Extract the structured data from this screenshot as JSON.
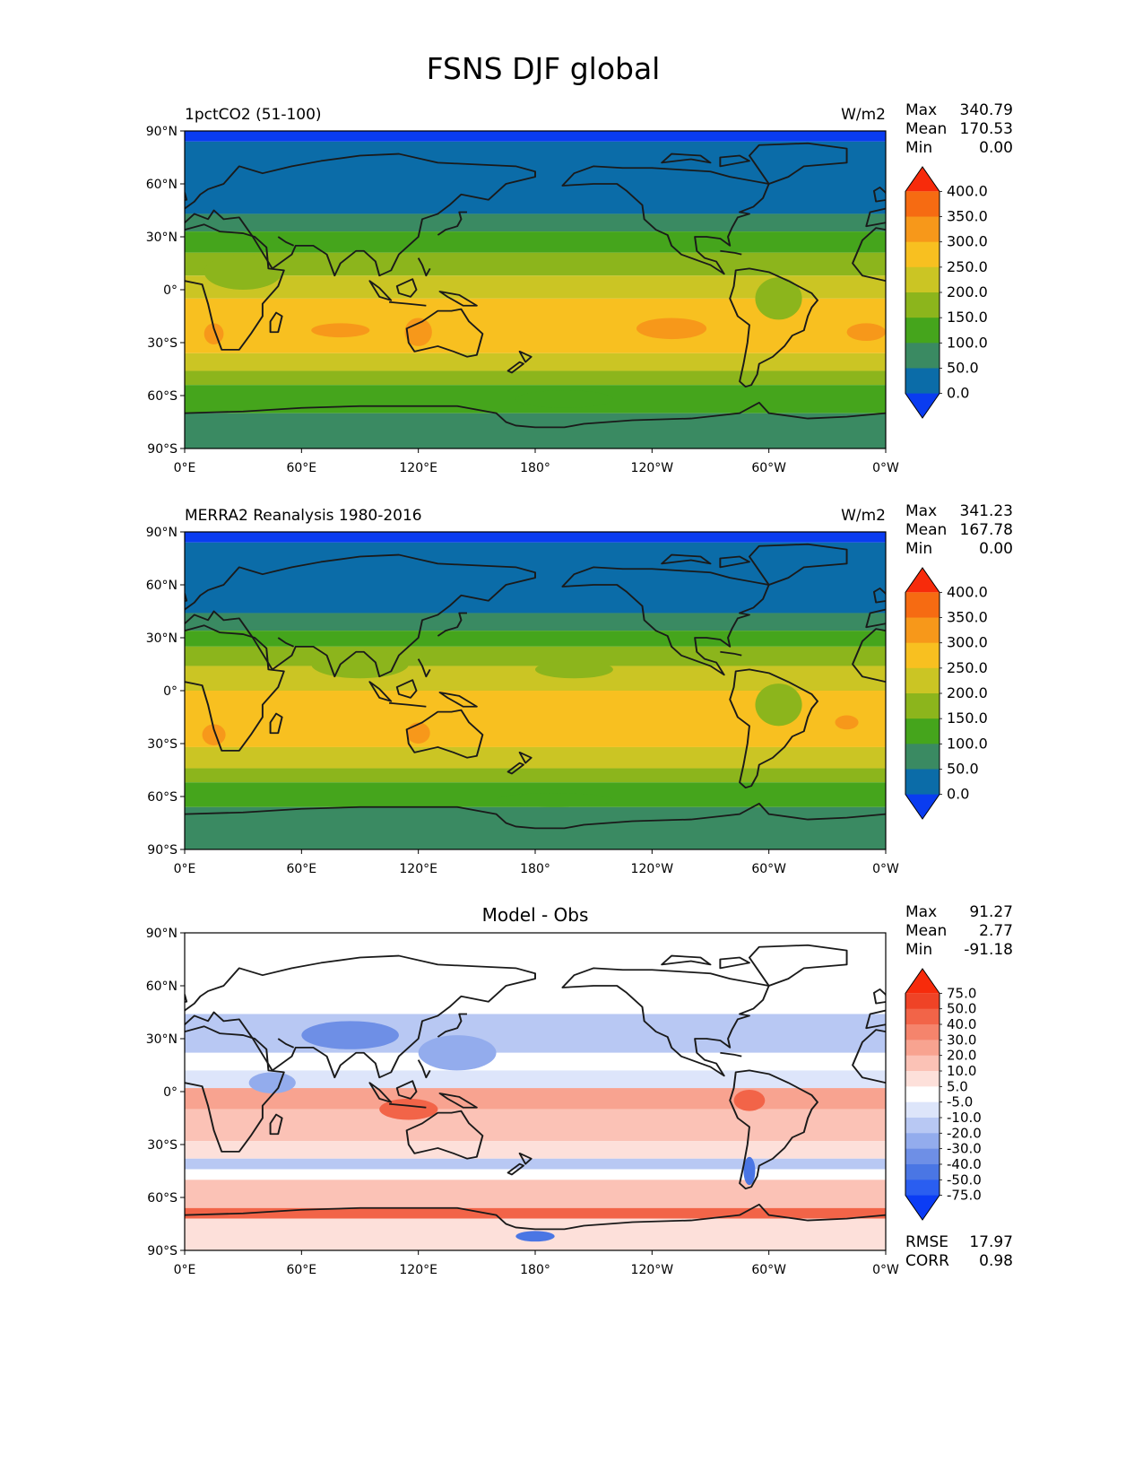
{
  "figure_title": "FSNS DJF global",
  "chart_data": [
    {
      "type": "heatmap",
      "panel": "model",
      "left_title": "1pctCO2 (51-100)",
      "units": "W/m2",
      "stats": {
        "max_label": "Max",
        "max": "340.79",
        "mean_label": "Mean",
        "mean": "170.53",
        "min_label": "Min",
        "min": "0.00"
      },
      "x_ticks": [
        "0°E",
        "60°E",
        "120°E",
        "180°",
        "120°W",
        "60°W",
        "0°W"
      ],
      "y_ticks": [
        "90°N",
        "60°N",
        "30°N",
        "0°",
        "30°S",
        "60°S",
        "90°S"
      ],
      "xlim": [
        0,
        360
      ],
      "ylim": [
        -90,
        90
      ],
      "colorbar": {
        "levels": [
          "0.0",
          "50.0",
          "100.0",
          "150.0",
          "200.0",
          "250.0",
          "300.0",
          "350.0",
          "400.0"
        ],
        "colors": [
          "#0a3cf0",
          "#0b6ca8",
          "#3a8a62",
          "#45a51c",
          "#8cb51c",
          "#cbc524",
          "#f8c020",
          "#f7981a",
          "#f66b12",
          "#f72b0b"
        ],
        "extend": "both"
      },
      "lat_bands": [
        {
          "from": 90,
          "to": 84,
          "level": 0
        },
        {
          "from": 84,
          "to": 43,
          "level": 1
        },
        {
          "from": 43,
          "to": 33,
          "level": 2
        },
        {
          "from": 33,
          "to": 21,
          "level": 3
        },
        {
          "from": 21,
          "to": 8,
          "level": 4
        },
        {
          "from": 8,
          "to": -5,
          "level": 5
        },
        {
          "from": -5,
          "to": -36,
          "level": 6
        },
        {
          "from": -36,
          "to": -46,
          "level": 5
        },
        {
          "from": -46,
          "to": -54,
          "level": 4
        },
        {
          "from": -54,
          "to": -70,
          "level": 3
        },
        {
          "from": -70,
          "to": -90,
          "level": 2
        }
      ],
      "patches": [
        {
          "lon": 80,
          "lat": -23,
          "w": 15,
          "h": 4,
          "level": 7
        },
        {
          "lon": 120,
          "lat": -24,
          "w": 7,
          "h": 8,
          "level": 7
        },
        {
          "lon": 250,
          "lat": -22,
          "w": 18,
          "h": 6,
          "level": 7
        },
        {
          "lon": 350,
          "lat": -24,
          "w": 10,
          "h": 5,
          "level": 7
        },
        {
          "lon": 15,
          "lat": -25,
          "w": 5,
          "h": 6,
          "level": 7
        },
        {
          "lon": 30,
          "lat": 10,
          "w": 20,
          "h": 10,
          "level": 4
        },
        {
          "lon": 305,
          "lat": -5,
          "w": 12,
          "h": 12,
          "level": 4
        },
        {
          "lon": 195,
          "lat": -62,
          "w": 25,
          "h": 5,
          "level": 3
        }
      ]
    },
    {
      "type": "heatmap",
      "panel": "observations",
      "left_title": "MERRA2 Reanalysis 1980-2016",
      "units": "W/m2",
      "stats": {
        "max_label": "Max",
        "max": "341.23",
        "mean_label": "Mean",
        "mean": "167.78",
        "min_label": "Min",
        "min": "0.00"
      },
      "x_ticks": [
        "0°E",
        "60°E",
        "120°E",
        "180°",
        "120°W",
        "60°W",
        "0°W"
      ],
      "y_ticks": [
        "90°N",
        "60°N",
        "30°N",
        "0°",
        "30°S",
        "60°S",
        "90°S"
      ],
      "xlim": [
        0,
        360
      ],
      "ylim": [
        -90,
        90
      ],
      "colorbar": {
        "levels": [
          "0.0",
          "50.0",
          "100.0",
          "150.0",
          "200.0",
          "250.0",
          "300.0",
          "350.0",
          "400.0"
        ],
        "colors": [
          "#0a3cf0",
          "#0b6ca8",
          "#3a8a62",
          "#45a51c",
          "#8cb51c",
          "#cbc524",
          "#f8c020",
          "#f7981a",
          "#f66b12",
          "#f72b0b"
        ],
        "extend": "both"
      },
      "lat_bands": [
        {
          "from": 90,
          "to": 84,
          "level": 0
        },
        {
          "from": 84,
          "to": 44,
          "level": 1
        },
        {
          "from": 44,
          "to": 34,
          "level": 2
        },
        {
          "from": 34,
          "to": 25,
          "level": 3
        },
        {
          "from": 25,
          "to": 14,
          "level": 4
        },
        {
          "from": 14,
          "to": 0,
          "level": 5
        },
        {
          "from": 0,
          "to": -32,
          "level": 6
        },
        {
          "from": -32,
          "to": -44,
          "level": 5
        },
        {
          "from": -44,
          "to": -52,
          "level": 4
        },
        {
          "from": -52,
          "to": -66,
          "level": 3
        },
        {
          "from": -66,
          "to": -90,
          "level": 2
        }
      ],
      "patches": [
        {
          "lon": 15,
          "lat": -25,
          "w": 6,
          "h": 6,
          "level": 7
        },
        {
          "lon": 120,
          "lat": -24,
          "w": 6,
          "h": 6,
          "level": 7
        },
        {
          "lon": 340,
          "lat": -18,
          "w": 6,
          "h": 4,
          "level": 7
        },
        {
          "lon": 200,
          "lat": 12,
          "w": 20,
          "h": 5,
          "level": 4
        },
        {
          "lon": 90,
          "lat": 15,
          "w": 25,
          "h": 8,
          "level": 4
        },
        {
          "lon": 305,
          "lat": -8,
          "w": 12,
          "h": 12,
          "level": 4
        },
        {
          "lon": 190,
          "lat": -62,
          "w": 30,
          "h": 4,
          "level": 3
        }
      ]
    },
    {
      "type": "heatmap",
      "panel": "difference",
      "center_title": "Model - Obs",
      "stats": {
        "max_label": "Max",
        "max": "91.27",
        "mean_label": "Mean",
        "mean": "2.77",
        "min_label": "Min",
        "min": "-91.18"
      },
      "metrics": {
        "rmse_label": "RMSE",
        "rmse": "17.97",
        "corr_label": "CORR",
        "corr": "0.98"
      },
      "x_ticks": [
        "0°E",
        "60°E",
        "120°E",
        "180°",
        "120°W",
        "60°W",
        "0°W"
      ],
      "y_ticks": [
        "90°N",
        "60°N",
        "30°N",
        "0°",
        "30°S",
        "60°S",
        "90°S"
      ],
      "xlim": [
        0,
        360
      ],
      "ylim": [
        -90,
        90
      ],
      "colorbar": {
        "levels": [
          "-75.0",
          "-50.0",
          "-40.0",
          "-30.0",
          "-20.0",
          "-10.0",
          "-5.0",
          "5.0",
          "10.0",
          "20.0",
          "30.0",
          "40.0",
          "50.0",
          "75.0"
        ],
        "colors": [
          "#0b3cf5",
          "#2a5ef0",
          "#4a76e4",
          "#6e8fe6",
          "#93aced",
          "#b8c8f3",
          "#dde5fa",
          "#ffffff",
          "#fde0da",
          "#fbc2b6",
          "#f8a390",
          "#f5846c",
          "#f26448",
          "#ef4326",
          "#f72b0b"
        ],
        "extend": "both"
      },
      "lat_bands": [
        {
          "from": 90,
          "to": 44,
          "level": 7
        },
        {
          "from": 44,
          "to": 22,
          "level": 5
        },
        {
          "from": 22,
          "to": 12,
          "level": 7
        },
        {
          "from": 12,
          "to": 2,
          "level": 6
        },
        {
          "from": 2,
          "to": -10,
          "level": 10
        },
        {
          "from": -10,
          "to": -28,
          "level": 9
        },
        {
          "from": -28,
          "to": -38,
          "level": 8
        },
        {
          "from": -38,
          "to": -44,
          "level": 5
        },
        {
          "from": -44,
          "to": -50,
          "level": 7
        },
        {
          "from": -50,
          "to": -66,
          "level": 9
        },
        {
          "from": -66,
          "to": -72,
          "level": 12
        },
        {
          "from": -72,
          "to": -90,
          "level": 8
        }
      ],
      "patches": [
        {
          "lon": 85,
          "lat": 32,
          "w": 25,
          "h": 8,
          "level": 3
        },
        {
          "lon": 140,
          "lat": 22,
          "w": 20,
          "h": 10,
          "level": 4
        },
        {
          "lon": 115,
          "lat": -10,
          "w": 15,
          "h": 6,
          "level": 12
        },
        {
          "lon": 290,
          "lat": -5,
          "w": 8,
          "h": 6,
          "level": 12
        },
        {
          "lon": 180,
          "lat": -82,
          "w": 10,
          "h": 3,
          "level": 2
        },
        {
          "lon": 290,
          "lat": -45,
          "w": 3,
          "h": 8,
          "level": 2
        },
        {
          "lon": 45,
          "lat": 5,
          "w": 12,
          "h": 6,
          "level": 4
        }
      ]
    }
  ]
}
